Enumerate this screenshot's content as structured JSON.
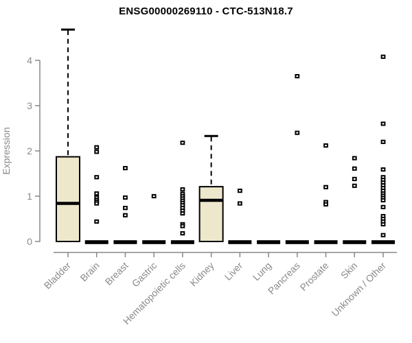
{
  "title": "ENSG00000269110 - CTC-513N18.7",
  "colors": {
    "box_fill": "#EDE7CC",
    "box_border": "#000000",
    "median": "#000000",
    "outlier": "#000000",
    "axis": "#878787",
    "tick_label": "#8a8a8a",
    "title_color": "#000000",
    "background": "#ffffff"
  },
  "chart_data": {
    "type": "boxplot",
    "title": "ENSG00000269110 - CTC-513N18.7",
    "xlabel": "",
    "ylabel": "Expression",
    "ylim": [
      0,
      4.7
    ],
    "yticks": [
      0,
      1,
      2,
      3,
      4
    ],
    "grid": false,
    "legend": "none",
    "categories": [
      "Bladder",
      "Brain",
      "Breast",
      "Gastric",
      "Hematopoietic cells",
      "Kidney",
      "Liver",
      "Lung",
      "Pancreas",
      "Prostate",
      "Skin",
      "Unknown / Other"
    ],
    "boxes": [
      {
        "category": "Bladder",
        "q1": 0,
        "median": 0.84,
        "q3": 1.87,
        "whisker_low": 0,
        "whisker_high": 4.68,
        "outliers": []
      },
      {
        "category": "Brain",
        "q1": 0,
        "median": 0,
        "q3": 0,
        "whisker_low": 0,
        "whisker_high": 0,
        "outliers": [
          2.08,
          1.98,
          1.42,
          1.06,
          0.97,
          0.92,
          0.88,
          0.84,
          0.44
        ]
      },
      {
        "category": "Breast",
        "q1": 0,
        "median": 0,
        "q3": 0,
        "whisker_low": 0,
        "whisker_high": 0,
        "outliers": [
          1.62,
          0.97,
          0.74,
          0.58
        ]
      },
      {
        "category": "Gastric",
        "q1": 0,
        "median": 0,
        "q3": 0,
        "whisker_low": 0,
        "whisker_high": 0,
        "outliers": [
          1.0
        ]
      },
      {
        "category": "Hematopoietic cells",
        "q1": 0,
        "median": 0,
        "q3": 0,
        "whisker_low": 0,
        "whisker_high": 0,
        "outliers": [
          2.18,
          1.15,
          1.05,
          1.0,
          0.95,
          0.9,
          0.85,
          0.8,
          0.74,
          0.68,
          0.62,
          0.38,
          0.34,
          0.18
        ]
      },
      {
        "category": "Kidney",
        "q1": 0,
        "median": 0.91,
        "q3": 1.21,
        "whisker_low": 0,
        "whisker_high": 2.33,
        "outliers": []
      },
      {
        "category": "Liver",
        "q1": 0,
        "median": 0,
        "q3": 0,
        "whisker_low": 0,
        "whisker_high": 0,
        "outliers": [
          1.12,
          0.84
        ]
      },
      {
        "category": "Lung",
        "q1": 0,
        "median": 0,
        "q3": 0,
        "whisker_low": 0,
        "whisker_high": 0,
        "outliers": []
      },
      {
        "category": "Pancreas",
        "q1": 0,
        "median": 0,
        "q3": 0,
        "whisker_low": 0,
        "whisker_high": 0,
        "outliers": [
          3.65,
          2.4
        ]
      },
      {
        "category": "Prostate",
        "q1": 0,
        "median": 0,
        "q3": 0,
        "whisker_low": 0,
        "whisker_high": 0,
        "outliers": [
          2.12,
          1.2,
          0.87,
          0.82
        ]
      },
      {
        "category": "Skin",
        "q1": 0,
        "median": 0,
        "q3": 0,
        "whisker_low": 0,
        "whisker_high": 0,
        "outliers": [
          1.84,
          1.61,
          1.38,
          1.23
        ]
      },
      {
        "category": "Unknown / Other",
        "q1": 0,
        "median": 0,
        "q3": 0,
        "whisker_low": 0,
        "whisker_high": 0,
        "outliers": [
          4.08,
          2.6,
          2.2,
          1.59,
          1.42,
          1.36,
          1.3,
          1.24,
          1.18,
          1.12,
          1.06,
          1.01,
          0.96,
          0.91,
          0.76,
          0.56,
          0.5,
          0.44,
          0.38,
          0.14
        ]
      }
    ]
  }
}
